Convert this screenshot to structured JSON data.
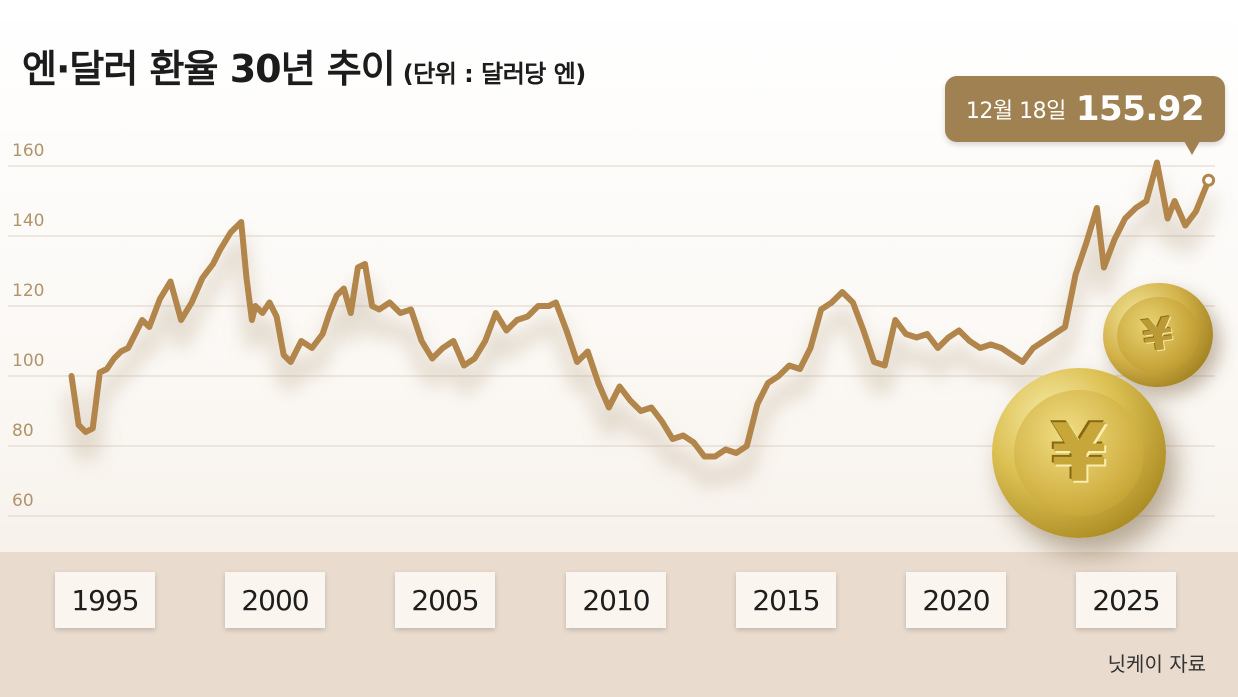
{
  "title": "엔·달러 환율 30년 추이",
  "unit": "(단위 :  달러당 엔)",
  "source": "닛케이 자료",
  "callout": {
    "date": "12월 18일",
    "value": "155.92"
  },
  "colors": {
    "line": "#b2854a",
    "shadow": "#a9916f",
    "axis_band": "#e9dccf",
    "callout": "#9f8152"
  },
  "icons": [
    "yen-coin-small-icon",
    "yen-coin-large-icon"
  ],
  "coin_symbol": "¥",
  "chart_data": {
    "type": "line",
    "title": "엔·달러 환율 30년 추이",
    "ylabel": "",
    "xlabel": "",
    "ylim": [
      60,
      160
    ],
    "xlim": [
      1993.7,
      2026.0
    ],
    "yticks": [
      60,
      80,
      100,
      120,
      140,
      160
    ],
    "xtick_labels": [
      "1995",
      "2000",
      "2005",
      "2010",
      "2015",
      "2020",
      "2025"
    ],
    "grid": true,
    "series": [
      {
        "x": [
          1993.8,
          1994.0,
          1994.2,
          1994.4,
          1994.6,
          1994.8,
          1995.0,
          1995.2,
          1995.4,
          1995.6,
          1995.8,
          1996.0,
          1996.3,
          1996.6,
          1996.9,
          1997.2,
          1997.5,
          1997.8,
          1998.0,
          1998.3,
          1998.6,
          1998.75,
          1998.9,
          1999.0,
          1999.2,
          1999.4,
          1999.6,
          1999.8,
          2000.0,
          2000.3,
          2000.6,
          2000.9,
          2001.1,
          2001.3,
          2001.5,
          2001.7,
          2001.9,
          2002.1,
          2002.3,
          2002.5,
          2002.8,
          2003.1,
          2003.4,
          2003.7,
          2004.0,
          2004.3,
          2004.6,
          2004.9,
          2005.2,
          2005.5,
          2005.8,
          2006.1,
          2006.4,
          2006.7,
          2007.0,
          2007.3,
          2007.5,
          2007.8,
          2008.1,
          2008.4,
          2008.7,
          2009.0,
          2009.3,
          2009.6,
          2009.9,
          2010.2,
          2010.5,
          2010.8,
          2011.1,
          2011.4,
          2011.7,
          2012.0,
          2012.3,
          2012.6,
          2012.9,
          2013.2,
          2013.5,
          2013.8,
          2014.1,
          2014.4,
          2014.7,
          2015.0,
          2015.3,
          2015.6,
          2015.9,
          2016.2,
          2016.5,
          2016.8,
          2017.1,
          2017.4,
          2017.7,
          2018.0,
          2018.3,
          2018.6,
          2018.9,
          2019.2,
          2019.5,
          2019.8,
          2020.1,
          2020.4,
          2020.7,
          2021.0,
          2021.3,
          2021.6,
          2021.9,
          2022.2,
          2022.5,
          2022.8,
          2023.0,
          2023.3,
          2023.6,
          2023.9,
          2024.2,
          2024.5,
          2024.8,
          2025.0,
          2025.3,
          2025.6,
          2025.96
        ],
        "values": [
          100,
          86,
          84,
          85,
          101,
          102,
          105,
          107,
          108,
          112,
          116,
          114,
          122,
          127,
          116,
          121,
          128,
          132,
          136,
          141,
          144,
          128,
          116,
          120,
          118,
          121,
          117,
          106,
          104,
          110,
          108,
          112,
          118,
          123,
          125,
          118,
          131,
          132,
          120,
          119,
          121,
          118,
          119,
          110,
          105,
          108,
          110,
          103,
          105,
          110,
          118,
          113,
          116,
          117,
          120,
          120,
          121,
          113,
          104,
          107,
          98,
          91,
          97,
          93,
          90,
          91,
          87,
          82,
          83,
          81,
          77,
          77,
          79,
          78,
          80,
          92,
          98,
          100,
          103,
          102,
          108,
          119,
          121,
          124,
          121,
          113,
          104,
          103,
          116,
          112,
          111,
          112,
          108,
          111,
          113,
          110,
          108,
          109,
          108,
          106,
          104,
          108,
          110,
          112,
          114,
          129,
          138,
          148,
          131,
          139,
          145,
          148,
          150,
          161,
          145,
          150,
          143,
          147,
          155.92
        ]
      }
    ]
  }
}
